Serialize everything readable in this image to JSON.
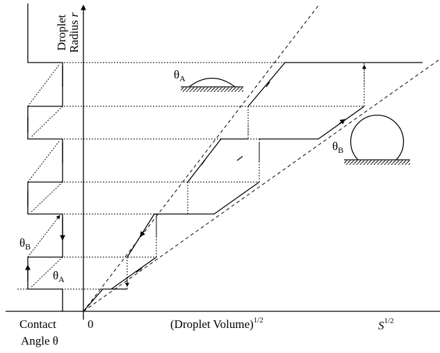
{
  "axis": {
    "radius_line1": "Droplet",
    "radius_line2": "Radius",
    "radius_symbol": "r",
    "origin": "0",
    "x_label": "(Droplet Volume)",
    "x_label_power": "1/2",
    "x_end": "S",
    "x_end_power": "1/2",
    "angle_line1": "Contact",
    "angle_line2": "Angle θ"
  },
  "labels": {
    "theta_a": {
      "symbol": "θ",
      "sub": "A"
    },
    "theta_b": {
      "symbol": "θ",
      "sub": "B"
    },
    "left_theta_b": {
      "symbol": "θ",
      "sub": "B"
    },
    "left_theta_a": {
      "symbol": "θ",
      "sub": "A"
    }
  }
}
